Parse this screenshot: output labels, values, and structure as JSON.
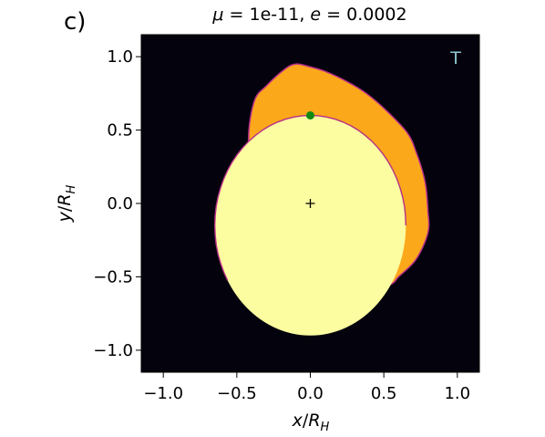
{
  "panel_label": "c)",
  "chart_data": {
    "type": "heatmap",
    "title_math": {
      "mu_symbol": "μ",
      "mu_value": "1e-11",
      "e_symbol": "e",
      "e_value": "0.0002"
    },
    "xlabel": {
      "main": "x",
      "sep": "/",
      "R": "R",
      "sub": "H"
    },
    "ylabel": {
      "main": "y",
      "sep": "/",
      "R": "R",
      "sub": "H"
    },
    "xlim": [
      -1.15,
      1.15
    ],
    "ylim": [
      -1.15,
      1.15
    ],
    "x_ticks": [
      {
        "value": -1.0,
        "label": "−1.0"
      },
      {
        "value": -0.5,
        "label": "−0.5"
      },
      {
        "value": 0.0,
        "label": "0.0"
      },
      {
        "value": 0.5,
        "label": "0.5"
      },
      {
        "value": 1.0,
        "label": "1.0"
      }
    ],
    "y_ticks": [
      {
        "value": 1.0,
        "label": "1.0"
      },
      {
        "value": 0.5,
        "label": "0.5"
      },
      {
        "value": 0.0,
        "label": "0.0"
      },
      {
        "value": -0.5,
        "label": "−0.5"
      },
      {
        "value": -1.0,
        "label": "−1.0"
      }
    ],
    "annotation": "T",
    "colors": {
      "background": "#04030d",
      "outer_region": "#fba81a",
      "inner_region": "#fcfca0",
      "edge": "#b8308a",
      "marker": "#118811",
      "annotation": "#8fc6cf"
    },
    "outer_region_boundary": [
      [
        -0.38,
        0.7
      ],
      [
        -0.3,
        0.8
      ],
      [
        -0.18,
        0.91
      ],
      [
        -0.1,
        0.95
      ],
      [
        0.0,
        0.93
      ],
      [
        0.1,
        0.9
      ],
      [
        0.25,
        0.83
      ],
      [
        0.38,
        0.75
      ],
      [
        0.52,
        0.63
      ],
      [
        0.66,
        0.48
      ],
      [
        0.72,
        0.35
      ],
      [
        0.78,
        0.15
      ],
      [
        0.8,
        -0.05
      ],
      [
        0.8,
        -0.2
      ],
      [
        0.72,
        -0.38
      ],
      [
        0.6,
        -0.5
      ],
      [
        0.55,
        -0.55
      ],
      [
        0.4,
        -0.6
      ],
      [
        0.2,
        -0.62
      ],
      [
        0.0,
        -0.6
      ],
      [
        -0.38,
        0.2
      ],
      [
        -0.42,
        0.45
      ]
    ],
    "inner_region_ellipse": {
      "cx": 0.0,
      "cy": -0.15,
      "rx": 0.65,
      "ry": 0.75
    },
    "inner_region_edge_arc": {
      "from_deg": 150,
      "to_deg": 360
    },
    "markers": [
      {
        "name": "green-dot",
        "x": 0.0,
        "y": 0.6,
        "shape": "circle"
      },
      {
        "name": "center-plus",
        "x": 0.0,
        "y": 0.0,
        "shape": "plus"
      }
    ]
  }
}
